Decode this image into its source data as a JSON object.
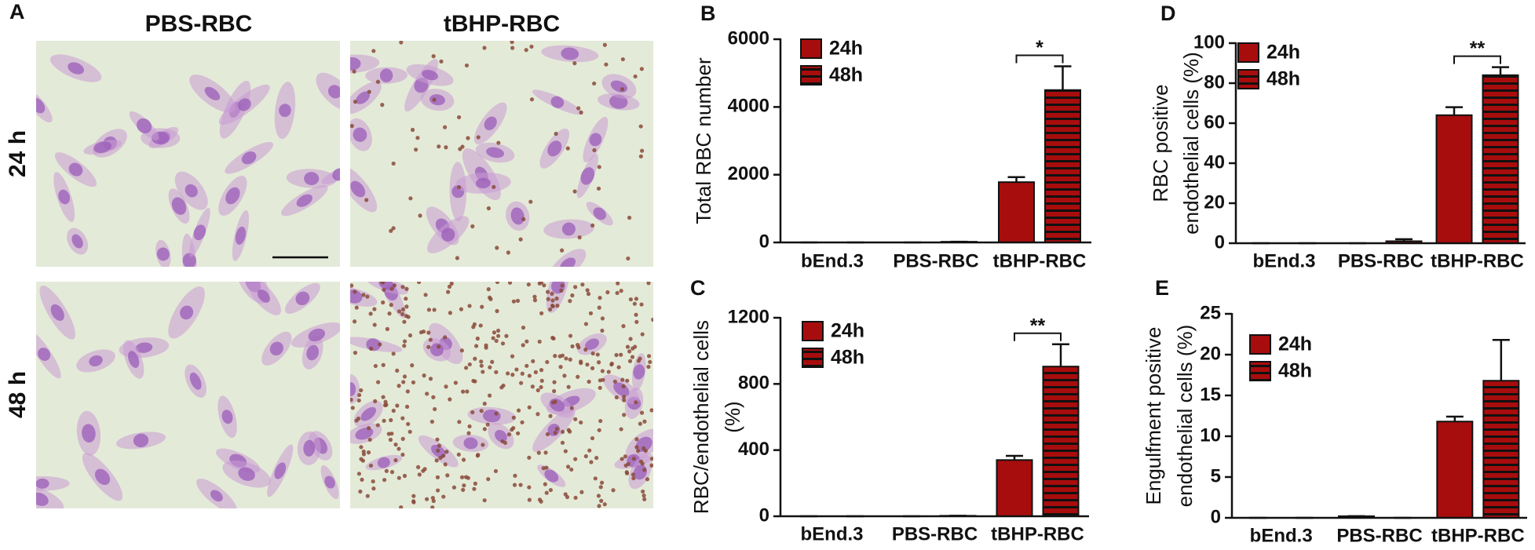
{
  "micrographs": {
    "panel_label": "A",
    "columns": [
      "PBS-RBC",
      "tBHP-RBC"
    ],
    "rows": [
      "24 h",
      "48 h"
    ]
  },
  "chart_data": [
    {
      "type": "bar",
      "panel_label": "B",
      "ylabel": [
        "Total RBC number"
      ],
      "categories": [
        "bEnd.3",
        "PBS-RBC",
        "tBHP-RBC"
      ],
      "series": [
        {
          "name": "24h",
          "color": "#a80d0d",
          "values": [
            0,
            0,
            1780
          ],
          "errors": [
            0,
            0,
            150
          ]
        },
        {
          "name": "48h",
          "color": "#a80d0d",
          "hatch": "horizontal",
          "values": [
            0,
            20,
            4500
          ],
          "errors": [
            0,
            0,
            700
          ]
        }
      ],
      "ylim": [
        0,
        6000
      ],
      "yticks": [
        0,
        2000,
        4000,
        6000
      ],
      "legend": "upper left",
      "annotations": [
        {
          "text": "*",
          "category": "tBHP-RBC"
        }
      ]
    },
    {
      "type": "bar",
      "panel_label": "C",
      "ylabel": [
        "RBC/endothelial cells",
        "(%)"
      ],
      "categories": [
        "bEnd.3",
        "PBS-RBC",
        "tBHP-RBC"
      ],
      "series": [
        {
          "name": "24h",
          "color": "#a80d0d",
          "values": [
            0,
            0,
            340
          ],
          "errors": [
            0,
            0,
            25
          ]
        },
        {
          "name": "48h",
          "color": "#a80d0d",
          "hatch": "horizontal",
          "values": [
            0,
            3,
            905
          ],
          "errors": [
            0,
            0,
            135
          ]
        }
      ],
      "ylim": [
        0,
        1200
      ],
      "yticks": [
        0,
        400,
        800,
        1200
      ],
      "legend": "upper left",
      "annotations": [
        {
          "text": "**",
          "category": "tBHP-RBC"
        }
      ]
    },
    {
      "type": "bar",
      "panel_label": "D",
      "ylabel": [
        "RBC positive",
        "endothelial cells (%)"
      ],
      "categories": [
        "bEnd.3",
        "PBS-RBC",
        "tBHP-RBC"
      ],
      "series": [
        {
          "name": "24h",
          "color": "#a80d0d",
          "values": [
            0,
            0,
            64
          ],
          "errors": [
            0,
            0,
            4
          ]
        },
        {
          "name": "48h",
          "color": "#a80d0d",
          "hatch": "horizontal",
          "values": [
            0,
            1,
            84
          ],
          "errors": [
            0,
            1,
            4
          ]
        }
      ],
      "ylim": [
        0,
        100
      ],
      "yticks": [
        0,
        20,
        40,
        60,
        80,
        100
      ],
      "legend": "upper left",
      "annotations": [
        {
          "text": "**",
          "category": "tBHP-RBC"
        }
      ]
    },
    {
      "type": "bar",
      "panel_label": "E",
      "ylabel": [
        "Engulfment positive",
        "endothelial cells (%)"
      ],
      "categories": [
        "bEnd.3",
        "PBS-RBC",
        "tBHP-RBC"
      ],
      "series": [
        {
          "name": "24h",
          "color": "#a80d0d",
          "values": [
            0,
            0.2,
            11.8
          ],
          "errors": [
            0,
            0,
            0.6
          ]
        },
        {
          "name": "48h",
          "color": "#a80d0d",
          "hatch": "horizontal",
          "values": [
            0,
            0,
            16.8
          ],
          "errors": [
            0,
            0,
            5
          ]
        }
      ],
      "ylim": [
        0,
        25
      ],
      "yticks": [
        0,
        5,
        10,
        15,
        20,
        25
      ],
      "legend": "upper left",
      "annotations": []
    }
  ]
}
